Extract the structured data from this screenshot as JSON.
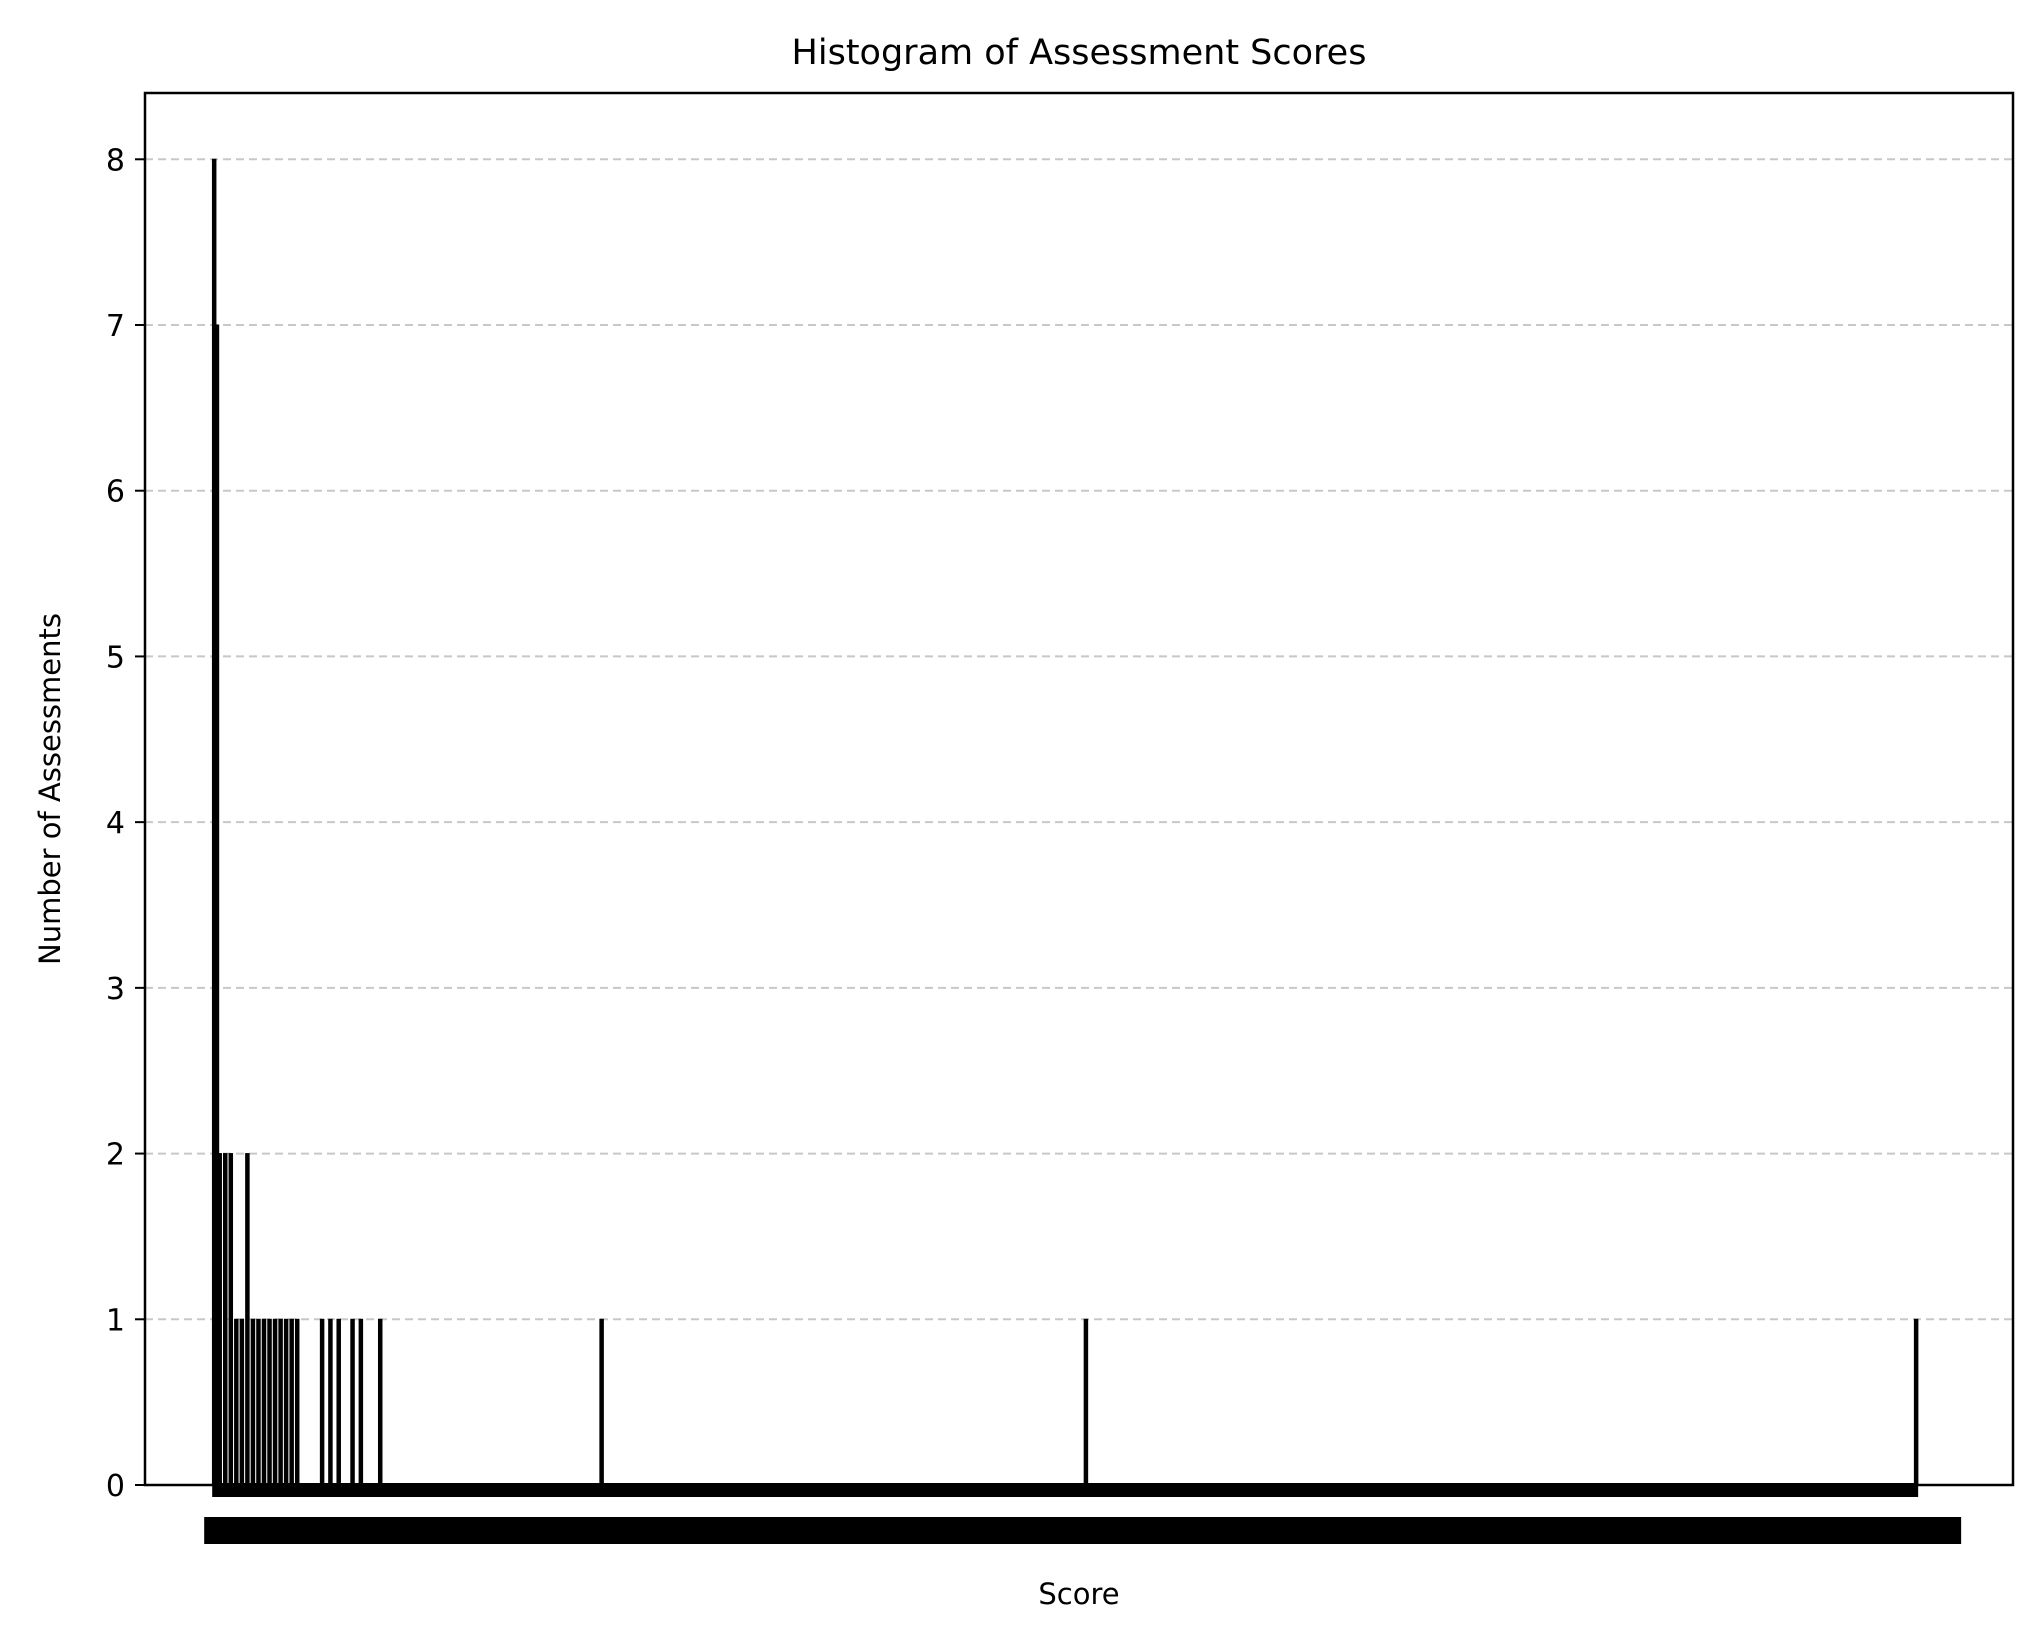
{
  "chart_data": {
    "type": "bar",
    "title": "Histogram of Assessment Scores",
    "xlabel": "Score",
    "ylabel": "Number of Assessments",
    "ylim": [
      0,
      8.4
    ],
    "yticks": [
      0,
      1,
      2,
      3,
      4,
      5,
      6,
      7,
      8
    ],
    "xlim": [
      -0.5,
      13.0
    ],
    "grid": "y-dashed",
    "legend": "none",
    "bar_fill_color": "#000000",
    "bar_edge_color": "#000000",
    "grid_color": "#c8c8c8",
    "x_tick_labels_note": "",
    "bins": [
      {
        "x": 0.0,
        "count": 8
      },
      {
        "x": 0.02,
        "count": 7
      },
      {
        "x": 0.04,
        "count": 2
      },
      {
        "x": 0.08,
        "count": 2
      },
      {
        "x": 0.12,
        "count": 2
      },
      {
        "x": 0.16,
        "count": 1
      },
      {
        "x": 0.2,
        "count": 1
      },
      {
        "x": 0.24,
        "count": 2
      },
      {
        "x": 0.28,
        "count": 1
      },
      {
        "x": 0.32,
        "count": 1
      },
      {
        "x": 0.36,
        "count": 1
      },
      {
        "x": 0.4,
        "count": 1
      },
      {
        "x": 0.44,
        "count": 1
      },
      {
        "x": 0.48,
        "count": 1
      },
      {
        "x": 0.52,
        "count": 1
      },
      {
        "x": 0.56,
        "count": 1
      },
      {
        "x": 0.6,
        "count": 1
      },
      {
        "x": 0.78,
        "count": 1
      },
      {
        "x": 0.84,
        "count": 1
      },
      {
        "x": 0.9,
        "count": 1
      },
      {
        "x": 1.0,
        "count": 1
      },
      {
        "x": 1.06,
        "count": 1
      },
      {
        "x": 1.2,
        "count": 1
      },
      {
        "x": 2.8,
        "count": 1
      },
      {
        "x": 6.3,
        "count": 1
      },
      {
        "x": 12.3,
        "count": 1
      }
    ]
  }
}
